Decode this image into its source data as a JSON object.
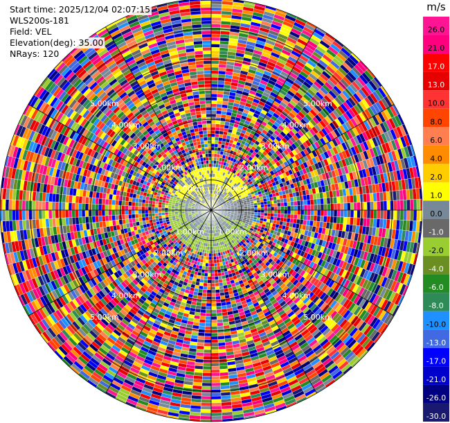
{
  "header": {
    "start_time": "Start time: 2025/12/04 02:07:15",
    "site": "WLS200s-181",
    "field": "Field: VEL",
    "elevation": "Elevation(deg): 35.00",
    "nrays": "NRays: 120"
  },
  "chart_data": {
    "type": "heatmap",
    "projection": "polar-ppi",
    "max_range_km": 7.0,
    "range_rings_km": [
      1,
      2,
      3,
      4,
      5,
      6,
      7
    ],
    "range_ring_labels": [
      "1.00km",
      "2.00km",
      "3.00km",
      "4.00km",
      "5.00km"
    ],
    "spoke_angles_deg": [
      0,
      30,
      60,
      90,
      120,
      150
    ],
    "nrays": 120,
    "colorbar": {
      "unit": "m/s",
      "ticks": [
        "26.0",
        "21.0",
        "17.0",
        "13.0",
        "10.0",
        "8.0",
        "6.0",
        "4.0",
        "2.0",
        "1.0",
        "0.0",
        "-1.0",
        "-2.0",
        "-4.0",
        "-6.0",
        "-8.0",
        "-10.0",
        "-13.0",
        "-17.0",
        "-21.0",
        "-26.0",
        "-30.0"
      ],
      "colors": [
        "#ff1493",
        "#ff007f",
        "#ff0000",
        "#e60000",
        "#ff3333",
        "#ff4500",
        "#ff7f50",
        "#ff8c00",
        "#ffcc00",
        "#ffff00",
        "#778899",
        "#696969",
        "#9acd32",
        "#6b8e23",
        "#228b22",
        "#2e8b57",
        "#1e90ff",
        "#4169e1",
        "#0000ff",
        "#0000cd",
        "#000080",
        "#191970"
      ]
    },
    "clear_data_radius_km": 1.5
  }
}
